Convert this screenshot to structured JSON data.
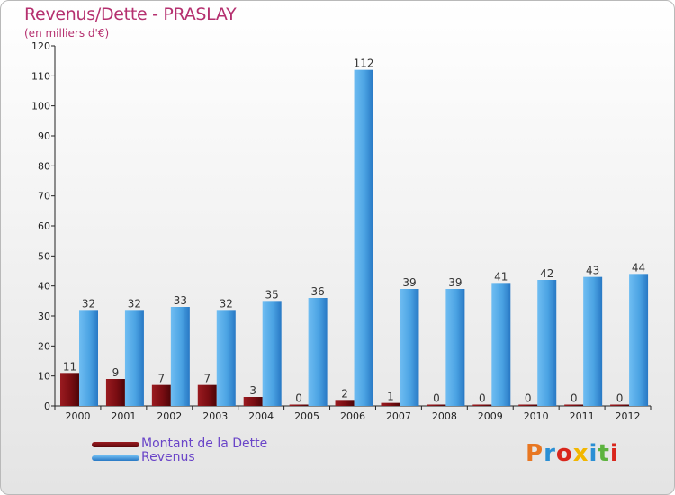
{
  "header": {
    "title": "Revenus/Dette - PRASLAY",
    "subtitle": "(en milliers d'€)"
  },
  "legend": [
    {
      "name": "Montant de la Dette",
      "color": "#7a0d12"
    },
    {
      "name": "Revenus",
      "color": "#4ba3e3"
    }
  ],
  "logo": {
    "letters": [
      "P",
      "r",
      "o",
      "x",
      "i",
      "t",
      "i"
    ],
    "colors": [
      "#e87722",
      "#2a8fd4",
      "#d9261c",
      "#f2b600",
      "#2a8fd4",
      "#5db33f",
      "#d9261c"
    ]
  },
  "chart_data": {
    "type": "bar",
    "title": "Revenus/Dette - PRASLAY",
    "ylabel": "(en milliers d'€)",
    "xlabel": "",
    "ylim": [
      0,
      120
    ],
    "yticks": [
      0,
      10,
      20,
      30,
      40,
      50,
      60,
      70,
      80,
      90,
      100,
      110,
      120
    ],
    "grid": false,
    "legend_position": "bottom-left",
    "categories": [
      "2000",
      "2001",
      "2002",
      "2003",
      "2004",
      "2005",
      "2006",
      "2007",
      "2008",
      "2009",
      "2010",
      "2011",
      "2012"
    ],
    "series": [
      {
        "name": "Montant de la Dette",
        "color": "#7a0d12",
        "values": [
          11,
          9,
          7,
          7,
          3,
          0,
          2,
          1,
          0,
          0,
          0,
          0,
          0
        ]
      },
      {
        "name": "Revenus",
        "color": "#4ba3e3",
        "values": [
          32,
          32,
          33,
          32,
          35,
          36,
          112,
          39,
          39,
          41,
          42,
          43,
          44
        ]
      }
    ]
  }
}
